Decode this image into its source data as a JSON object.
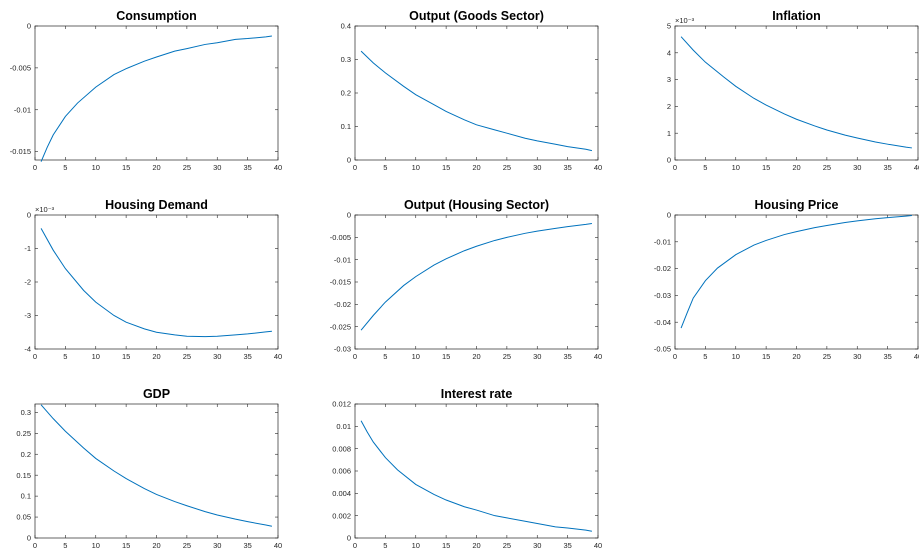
{
  "line_color": "#0072BD",
  "chart_data": [
    {
      "type": "line",
      "title": "Consumption",
      "xlim": [
        0,
        40
      ],
      "ylim": [
        -0.016,
        0
      ],
      "xticks": [
        0,
        5,
        10,
        15,
        20,
        25,
        30,
        35,
        40
      ],
      "yticks": [
        -0.015,
        -0.01,
        -0.005,
        0
      ],
      "ytick_labels": [
        "-0.015",
        "-0.01",
        "-0.005",
        "0"
      ],
      "exponent": "",
      "x": [
        1,
        2,
        3,
        5,
        7,
        10,
        13,
        15,
        18,
        20,
        23,
        25,
        28,
        30,
        33,
        35,
        38,
        39
      ],
      "y": [
        -0.0162,
        -0.0145,
        -0.013,
        -0.0108,
        -0.0092,
        -0.0073,
        -0.0058,
        -0.0051,
        -0.0042,
        -0.0037,
        -0.003,
        -0.0027,
        -0.0022,
        -0.002,
        -0.0016,
        -0.0015,
        -0.0013,
        -0.0012
      ]
    },
    {
      "type": "line",
      "title": "Output (Goods Sector)",
      "xlim": [
        0,
        40
      ],
      "ylim": [
        0,
        0.4
      ],
      "xticks": [
        0,
        5,
        10,
        15,
        20,
        25,
        30,
        35,
        40
      ],
      "yticks": [
        0,
        0.1,
        0.2,
        0.3,
        0.4
      ],
      "ytick_labels": [
        "0",
        "0.1",
        "0.2",
        "0.3",
        "0.4"
      ],
      "exponent": "",
      "x": [
        1,
        3,
        5,
        8,
        10,
        13,
        15,
        18,
        20,
        23,
        25,
        28,
        30,
        33,
        35,
        38,
        39
      ],
      "y": [
        0.325,
        0.29,
        0.26,
        0.22,
        0.195,
        0.165,
        0.145,
        0.12,
        0.105,
        0.09,
        0.08,
        0.065,
        0.057,
        0.047,
        0.04,
        0.032,
        0.028
      ]
    },
    {
      "type": "line",
      "title": "Inflation",
      "xlim": [
        0,
        40
      ],
      "ylim": [
        0,
        5
      ],
      "xticks": [
        0,
        5,
        10,
        15,
        20,
        25,
        30,
        35,
        40
      ],
      "yticks": [
        0,
        1,
        2,
        3,
        4,
        5
      ],
      "ytick_labels": [
        "0",
        "1",
        "2",
        "3",
        "4",
        "5"
      ],
      "exponent": "×10⁻³",
      "x": [
        1,
        3,
        5,
        8,
        10,
        13,
        15,
        18,
        20,
        23,
        25,
        28,
        30,
        33,
        35,
        38,
        39
      ],
      "y": [
        4.6,
        4.1,
        3.65,
        3.1,
        2.75,
        2.3,
        2.05,
        1.72,
        1.52,
        1.27,
        1.12,
        0.93,
        0.82,
        0.67,
        0.59,
        0.48,
        0.45
      ]
    },
    {
      "type": "line",
      "title": "Housing Demand",
      "xlim": [
        0,
        40
      ],
      "ylim": [
        -4,
        0
      ],
      "xticks": [
        0,
        5,
        10,
        15,
        20,
        25,
        30,
        35,
        40
      ],
      "yticks": [
        -4,
        -3,
        -2,
        -1,
        0
      ],
      "ytick_labels": [
        "-4",
        "-3",
        "-2",
        "-1",
        "0"
      ],
      "exponent": "×10⁻³",
      "x": [
        1,
        3,
        5,
        8,
        10,
        13,
        15,
        18,
        20,
        23,
        25,
        28,
        30,
        33,
        35,
        38,
        39
      ],
      "y": [
        -0.4,
        -1.05,
        -1.6,
        -2.25,
        -2.6,
        -3.0,
        -3.2,
        -3.4,
        -3.5,
        -3.58,
        -3.62,
        -3.63,
        -3.62,
        -3.58,
        -3.55,
        -3.49,
        -3.47
      ]
    },
    {
      "type": "line",
      "title": "Output (Housing Sector)",
      "xlim": [
        0,
        40
      ],
      "ylim": [
        -0.03,
        0
      ],
      "xticks": [
        0,
        5,
        10,
        15,
        20,
        25,
        30,
        35,
        40
      ],
      "yticks": [
        -0.03,
        -0.025,
        -0.02,
        -0.015,
        -0.01,
        -0.005,
        0
      ],
      "ytick_labels": [
        "-0.03",
        "-0.025",
        "-0.02",
        "-0.015",
        "-0.01",
        "-0.005",
        "0"
      ],
      "exponent": "",
      "x": [
        1,
        3,
        5,
        8,
        10,
        13,
        15,
        18,
        20,
        23,
        25,
        28,
        30,
        33,
        35,
        38,
        39
      ],
      "y": [
        -0.0258,
        -0.0225,
        -0.0195,
        -0.0158,
        -0.0138,
        -0.0112,
        -0.0098,
        -0.008,
        -0.007,
        -0.0057,
        -0.005,
        -0.0041,
        -0.0036,
        -0.003,
        -0.0026,
        -0.0021,
        -0.0019
      ]
    },
    {
      "type": "line",
      "title": "Housing Price",
      "xlim": [
        0,
        40
      ],
      "ylim": [
        -0.05,
        0
      ],
      "xticks": [
        0,
        5,
        10,
        15,
        20,
        25,
        30,
        35,
        40
      ],
      "yticks": [
        -0.05,
        -0.04,
        -0.03,
        -0.02,
        -0.01,
        0
      ],
      "ytick_labels": [
        "-0.05",
        "-0.04",
        "-0.03",
        "-0.02",
        "-0.01",
        "0"
      ],
      "exponent": "",
      "x": [
        1,
        2,
        3,
        5,
        7,
        10,
        13,
        15,
        18,
        20,
        23,
        25,
        28,
        30,
        33,
        35,
        38,
        39
      ],
      "y": [
        -0.0422,
        -0.0365,
        -0.031,
        -0.0245,
        -0.0198,
        -0.0148,
        -0.0112,
        -0.0095,
        -0.0073,
        -0.0062,
        -0.0047,
        -0.0039,
        -0.0028,
        -0.0022,
        -0.0014,
        -0.001,
        -0.0004,
        -0.0002
      ]
    },
    {
      "type": "line",
      "title": "GDP",
      "xlim": [
        0,
        40
      ],
      "ylim": [
        0,
        0.32
      ],
      "xticks": [
        0,
        5,
        10,
        15,
        20,
        25,
        30,
        35,
        40
      ],
      "yticks": [
        0,
        0.05,
        0.1,
        0.15,
        0.2,
        0.25,
        0.3
      ],
      "ytick_labels": [
        "0",
        "0.05",
        "0.1",
        "0.15",
        "0.2",
        "0.25",
        "0.3"
      ],
      "exponent": "",
      "x": [
        1,
        3,
        5,
        8,
        10,
        13,
        15,
        18,
        20,
        23,
        25,
        28,
        30,
        33,
        35,
        38,
        39
      ],
      "y": [
        0.318,
        0.285,
        0.255,
        0.215,
        0.19,
        0.16,
        0.142,
        0.118,
        0.104,
        0.087,
        0.077,
        0.063,
        0.055,
        0.045,
        0.039,
        0.031,
        0.028
      ]
    },
    {
      "type": "line",
      "title": "Interest rate",
      "xlim": [
        0,
        40
      ],
      "ylim": [
        0,
        0.012
      ],
      "xticks": [
        0,
        5,
        10,
        15,
        20,
        25,
        30,
        35,
        40
      ],
      "yticks": [
        0,
        0.002,
        0.004,
        0.006,
        0.008,
        0.01,
        0.012
      ],
      "ytick_labels": [
        "0",
        "0.002",
        "0.004",
        "0.006",
        "0.008",
        "0.01",
        "0.012"
      ],
      "exponent": "",
      "x": [
        1,
        2,
        3,
        5,
        7,
        10,
        13,
        15,
        18,
        20,
        23,
        25,
        28,
        30,
        33,
        35,
        38,
        39
      ],
      "y": [
        0.0105,
        0.0095,
        0.0086,
        0.0072,
        0.0061,
        0.0048,
        0.0039,
        0.0034,
        0.0028,
        0.0025,
        0.002,
        0.0018,
        0.0015,
        0.0013,
        0.001,
        0.0009,
        0.0007,
        0.0006
      ]
    }
  ]
}
